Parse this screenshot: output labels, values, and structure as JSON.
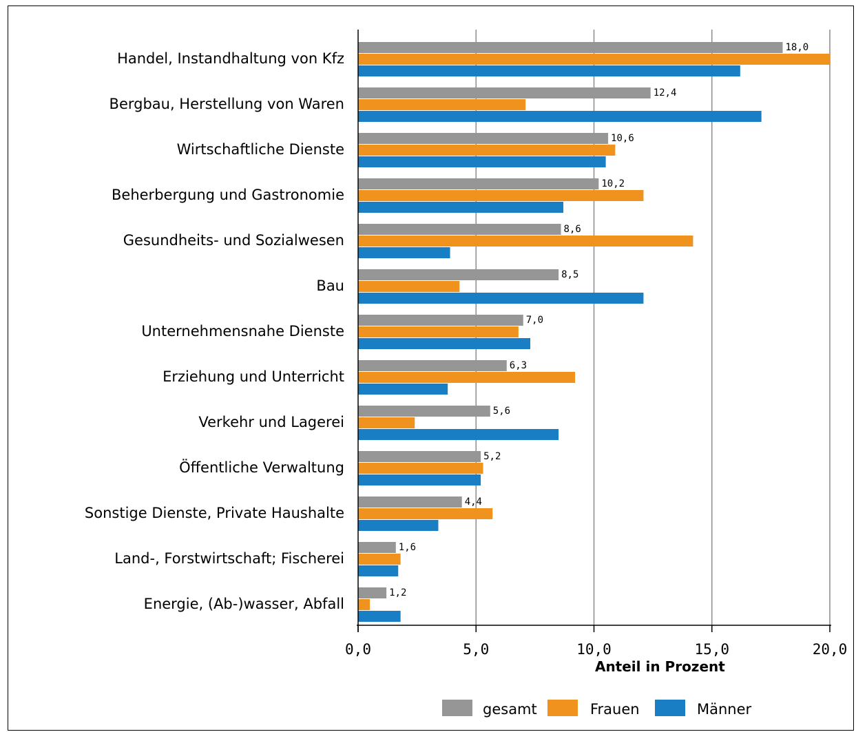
{
  "chart_data": {
    "type": "bar",
    "orientation": "horizontal",
    "categories": [
      "Handel, Instandhaltung von Kfz",
      "Bergbau, Herstellung von Waren",
      "Wirtschaftliche Dienste",
      "Beherbergung und Gastronomie",
      "Gesundheits- und Sozialwesen",
      "Bau",
      "Unternehmensnahe Dienste",
      "Erziehung und Unterricht",
      "Verkehr und Lagerei",
      "Öffentliche Verwaltung",
      "Sonstige Dienste, Private Haushalte",
      "Land-, Forstwirtschaft; Fischerei",
      "Energie, (Ab-)wasser, Abfall"
    ],
    "series": [
      {
        "name": "gesamt",
        "color": "#969696",
        "values": [
          18.0,
          12.4,
          10.6,
          10.2,
          8.6,
          8.5,
          7.0,
          6.3,
          5.6,
          5.2,
          4.4,
          1.6,
          1.2
        ],
        "labels": [
          "18,0",
          "12,4",
          "10,6",
          "10,2",
          "8,6",
          "8,5",
          "7,0",
          "6,3",
          "5,6",
          "5,2",
          "4,4",
          "1,6",
          "1,2"
        ]
      },
      {
        "name": "Frauen",
        "color": "#f0931e",
        "values": [
          20.0,
          7.1,
          10.9,
          12.1,
          14.2,
          4.3,
          6.8,
          9.2,
          2.4,
          5.3,
          5.7,
          1.8,
          0.5
        ]
      },
      {
        "name": "Männer",
        "color": "#1a7ec4",
        "values": [
          16.2,
          17.1,
          10.5,
          8.7,
          3.9,
          12.1,
          7.3,
          3.8,
          8.5,
          5.2,
          3.4,
          1.7,
          1.8
        ]
      }
    ],
    "xlim": [
      0,
      20
    ],
    "xticks": [
      0,
      5,
      10,
      15,
      20
    ],
    "xtick_labels": [
      "0,0",
      "5,0",
      "10,0",
      "15,0",
      "20,0"
    ],
    "xlabel": "Anteil in Prozent",
    "grid": true,
    "legend_position": "bottom"
  }
}
